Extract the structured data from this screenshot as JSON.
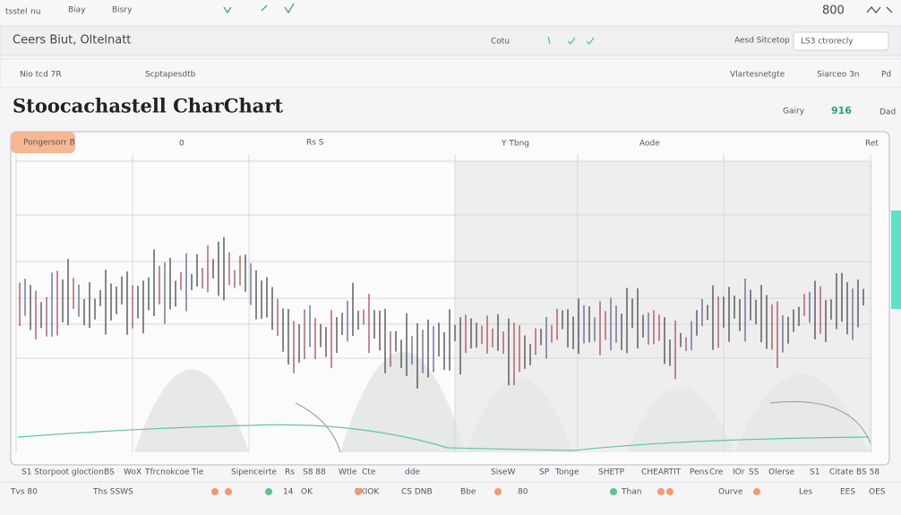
{
  "toolbar": {
    "items": [
      "tsstel",
      "nu",
      "Biay",
      "Bisry",
      "800"
    ]
  },
  "nav": {
    "app": "Ceers Biut, Oltelnatt",
    "menu": "Cotu",
    "search": "Aesd Sitcetop",
    "account": "LS3 ctrorecly"
  },
  "subnav": {
    "items": [
      "Nio tcd 7R",
      "Scptapesdtb",
      "Vlartesnetgte",
      "Siarceo 3n",
      "Pd"
    ]
  },
  "header": {
    "title": "Stoocachastell CharChart",
    "controls": [
      "Gairy",
      "916",
      "Dad"
    ]
  },
  "chart": {
    "tabs": [
      "Pongersorr B",
      "0",
      "Rs S",
      "Y Tbng",
      "Aode",
      "Ret"
    ]
  },
  "legend": {
    "items": [
      "S1 Storpoot gloction",
      "BS",
      "WoX",
      "Tfrcnokcoe",
      "Tie",
      "Sipenceirte",
      "Rs",
      "S8 88",
      "Wtle",
      "Cte",
      "dde",
      "SiseW",
      "SP",
      "Tonge",
      "SHETP",
      "CHEARTIT",
      "Pens",
      "Cre",
      "IOr",
      "SS",
      "Olerse",
      "S1",
      "Citate",
      "BS 58"
    ]
  },
  "footer": {
    "items": [
      "Tvs 80",
      "Ths SSWS",
      "14",
      "OK",
      "SKIOK",
      "CS DNB",
      "Bbe",
      "80",
      "Than",
      "Ourve",
      "Les",
      "EES",
      "OES"
    ]
  }
}
